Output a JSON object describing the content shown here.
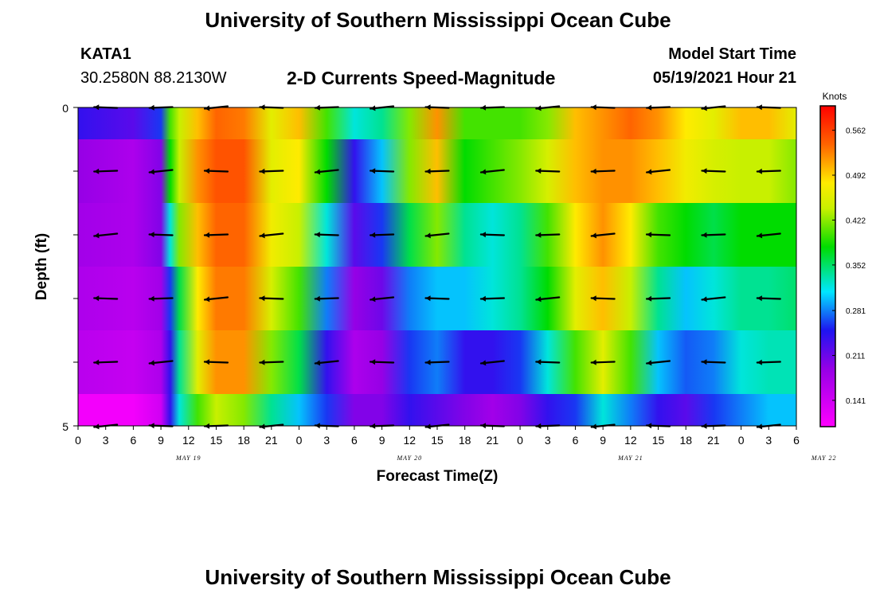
{
  "page": {
    "title_top": "University of Southern Mississippi Ocean Cube",
    "title_bottom": "University of Southern Mississippi Ocean Cube",
    "station_id": "KATA1",
    "station_coords": "30.2580N  88.2130W",
    "model_start_label": "Model Start Time",
    "model_start_value": "05/19/2021 Hour 21"
  },
  "chart_data": {
    "type": "heatmap",
    "title": "2-D Currents Speed-Magnitude",
    "xlabel": "Forecast Time(Z)",
    "ylabel": "Depth (ft)",
    "colorbar_label": "Knots",
    "colorbar_ticks": [
      "0.562",
      "0.492",
      "0.422",
      "0.352",
      "0.281",
      "0.211",
      "0.141"
    ],
    "colorbar_range": [
      0.1,
      0.6
    ],
    "y_tick_labels": [
      "0",
      "5"
    ],
    "ylim": [
      0,
      5
    ],
    "x_tick_labels": [
      "0",
      "3",
      "6",
      "9",
      "12",
      "15",
      "18",
      "21",
      "0",
      "3",
      "6",
      "9",
      "12",
      "15",
      "18",
      "21",
      "0",
      "3",
      "6",
      "9",
      "12",
      "15",
      "18",
      "21",
      "0",
      "3",
      "6"
    ],
    "x_hours_range": [
      0,
      78
    ],
    "date_labels": [
      {
        "text": "MAY 19",
        "hour": 12
      },
      {
        "text": "MAY 20",
        "hour": 36
      },
      {
        "text": "MAY 21",
        "hour": 60
      },
      {
        "text": "MAY 22",
        "hour": 81
      }
    ],
    "hour_keys": [
      0,
      6,
      9,
      10,
      11,
      13,
      15,
      18,
      21,
      24,
      27,
      30,
      33,
      36,
      39,
      42,
      45,
      48,
      51,
      54,
      57,
      60,
      63,
      66,
      69,
      72,
      75,
      78
    ],
    "layers": [
      {
        "depth_range": [
          0,
          0.5
        ],
        "values": [
          0.24,
          0.22,
          0.26,
          0.4,
          0.44,
          0.5,
          0.54,
          0.53,
          0.46,
          0.5,
          0.4,
          0.32,
          0.34,
          0.42,
          0.52,
          0.4,
          0.4,
          0.4,
          0.42,
          0.5,
          0.52,
          0.54,
          0.52,
          0.48,
          0.46,
          0.5,
          0.5,
          0.46
        ]
      },
      {
        "depth_range": [
          0.5,
          1.5
        ],
        "values": [
          0.19,
          0.17,
          0.2,
          0.38,
          0.44,
          0.52,
          0.55,
          0.55,
          0.46,
          0.48,
          0.38,
          0.24,
          0.3,
          0.42,
          0.5,
          0.38,
          0.4,
          0.42,
          0.45,
          0.5,
          0.52,
          0.52,
          0.5,
          0.47,
          0.45,
          0.44,
          0.44,
          0.42
        ]
      },
      {
        "depth_range": [
          1.5,
          2.5
        ],
        "values": [
          0.18,
          0.17,
          0.2,
          0.32,
          0.42,
          0.5,
          0.54,
          0.54,
          0.47,
          0.44,
          0.32,
          0.22,
          0.26,
          0.36,
          0.42,
          0.34,
          0.32,
          0.34,
          0.4,
          0.48,
          0.52,
          0.48,
          0.4,
          0.38,
          0.36,
          0.38,
          0.38,
          0.38
        ]
      },
      {
        "depth_range": [
          2.5,
          3.5
        ],
        "values": [
          0.17,
          0.16,
          0.18,
          0.26,
          0.36,
          0.48,
          0.53,
          0.53,
          0.45,
          0.4,
          0.28,
          0.19,
          0.21,
          0.28,
          0.3,
          0.3,
          0.32,
          0.34,
          0.38,
          0.46,
          0.5,
          0.44,
          0.34,
          0.3,
          0.32,
          0.34,
          0.34,
          0.35
        ]
      },
      {
        "depth_range": [
          3.5,
          4.5
        ],
        "values": [
          0.16,
          0.15,
          0.17,
          0.24,
          0.34,
          0.46,
          0.52,
          0.52,
          0.42,
          0.36,
          0.24,
          0.17,
          0.19,
          0.26,
          0.28,
          0.24,
          0.24,
          0.26,
          0.32,
          0.4,
          0.46,
          0.4,
          0.3,
          0.27,
          0.28,
          0.32,
          0.33,
          0.33
        ]
      },
      {
        "depth_range": [
          4.5,
          5
        ],
        "values": [
          0.11,
          0.11,
          0.14,
          0.24,
          0.32,
          0.4,
          0.44,
          0.42,
          0.34,
          0.3,
          0.26,
          0.2,
          0.2,
          0.24,
          0.22,
          0.2,
          0.18,
          0.2,
          0.24,
          0.26,
          0.32,
          0.28,
          0.24,
          0.22,
          0.26,
          0.28,
          0.3,
          0.3
        ]
      }
    ],
    "vector_depths": [
      0,
      1,
      2,
      3,
      4,
      5
    ],
    "vector_hours": [
      3,
      9,
      15,
      21,
      27,
      33,
      39,
      45,
      51,
      57,
      63,
      69,
      75
    ],
    "vector_angle_deg": 4
  }
}
